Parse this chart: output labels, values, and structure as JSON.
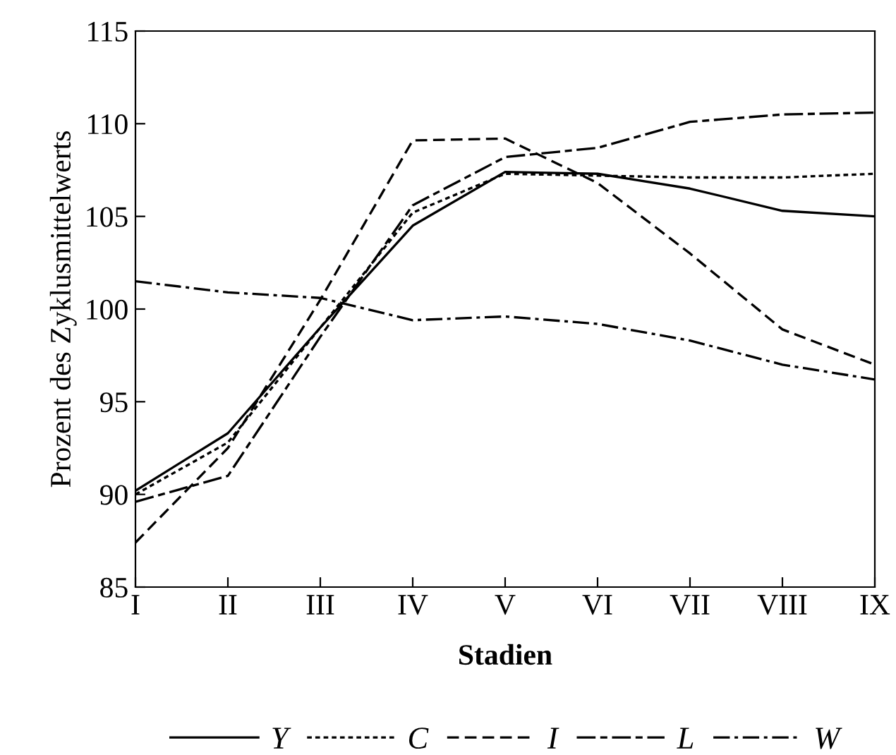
{
  "chart_data": {
    "type": "line",
    "xlabel": "Stadien",
    "ylabel": "Prozent des Zyklusmittelwerts",
    "categories": [
      "I",
      "II",
      "III",
      "IV",
      "V",
      "VI",
      "VII",
      "VIII",
      "IX"
    ],
    "series": [
      {
        "name": "Y",
        "color": "#000000",
        "line_style": "solid",
        "values": [
          90.2,
          93.3,
          99.0,
          104.5,
          107.4,
          107.3,
          106.5,
          105.3,
          105.0
        ]
      },
      {
        "name": "C",
        "color": "#000000",
        "line_style": "dotted",
        "values": [
          90.0,
          92.8,
          99.0,
          105.2,
          107.3,
          107.2,
          107.1,
          107.1,
          107.3
        ]
      },
      {
        "name": "I",
        "color": "#000000",
        "line_style": "dashed",
        "values": [
          87.4,
          92.5,
          100.5,
          109.1,
          109.2,
          106.8,
          103.0,
          98.9,
          97.0
        ]
      },
      {
        "name": "L",
        "color": "#000000",
        "line_style": "longdash",
        "values": [
          89.6,
          91.0,
          98.5,
          105.6,
          108.2,
          108.7,
          110.1,
          110.5,
          110.6
        ]
      },
      {
        "name": "W",
        "color": "#000000",
        "line_style": "dashdot",
        "values": [
          101.5,
          100.9,
          100.6,
          99.4,
          99.6,
          99.2,
          98.3,
          97.0,
          96.2
        ]
      }
    ],
    "ylim": [
      85,
      115
    ],
    "yticks": [
      85,
      90,
      95,
      100,
      105,
      110,
      115
    ],
    "grid": false,
    "legend": "bottom",
    "marker": "none"
  }
}
